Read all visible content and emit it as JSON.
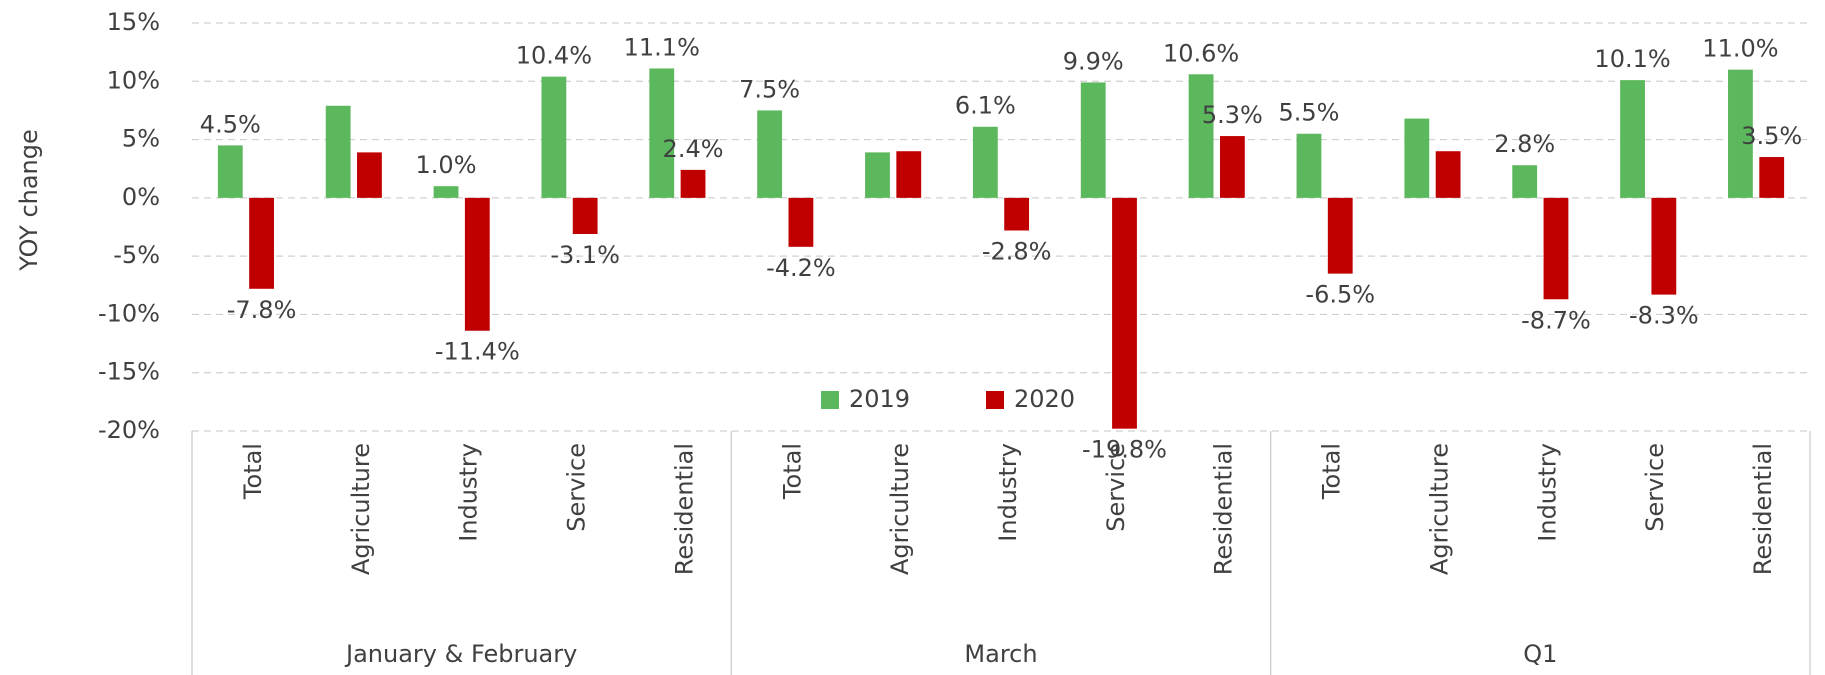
{
  "chart_data": {
    "type": "bar",
    "y_label": "YOY  change",
    "categories": [
      "Total",
      "Agriculture",
      "Industry",
      "Service",
      "Residential",
      "Total",
      "Agriculture",
      "Industry",
      "Service",
      "Residential",
      "Total",
      "Agriculture",
      "Industry",
      "Service",
      "Residential"
    ],
    "category_groups": [
      "January & February",
      "March",
      "Q1"
    ],
    "series": [
      {
        "name": "2019",
        "color": "#5cb85c",
        "values": [
          4.5,
          7.9,
          1.0,
          10.4,
          11.1,
          7.5,
          3.9,
          6.1,
          9.9,
          10.6,
          5.5,
          6.8,
          2.8,
          10.1,
          11.0
        ],
        "value_labels": [
          "4.5%",
          null,
          "1.0%",
          "10.4%",
          "11.1%",
          "7.5%",
          null,
          "6.1%",
          "9.9%",
          "10.6%",
          "5.5%",
          null,
          "2.8%",
          "10.1%",
          "11.0%"
        ]
      },
      {
        "name": "2020",
        "color": "#c00000",
        "values": [
          -7.8,
          3.9,
          -11.4,
          -3.1,
          2.4,
          -4.2,
          4.0,
          -2.8,
          -19.8,
          5.3,
          -6.5,
          4.0,
          -8.7,
          -8.3,
          3.5
        ],
        "value_labels": [
          "-7.8%",
          null,
          "-11.4%",
          "-3.1%",
          "2.4%",
          "-4.2%",
          null,
          "-2.8%",
          "-19.8%",
          "5.3%",
          "-6.5%",
          null,
          "-8.7%",
          "-8.3%",
          "3.5%"
        ]
      }
    ],
    "ylim": [
      -20,
      15
    ],
    "yticks": [
      {
        "value": -20,
        "label": "-20%"
      },
      {
        "value": -15,
        "label": "-15%"
      },
      {
        "value": -10,
        "label": "-10%"
      },
      {
        "value": -5,
        "label": "-5%"
      },
      {
        "value": 0,
        "label": "0%"
      },
      {
        "value": 5,
        "label": "5%"
      },
      {
        "value": 10,
        "label": "10%"
      },
      {
        "value": 15,
        "label": "15%"
      }
    ],
    "grid": true,
    "legend": "lower center"
  }
}
